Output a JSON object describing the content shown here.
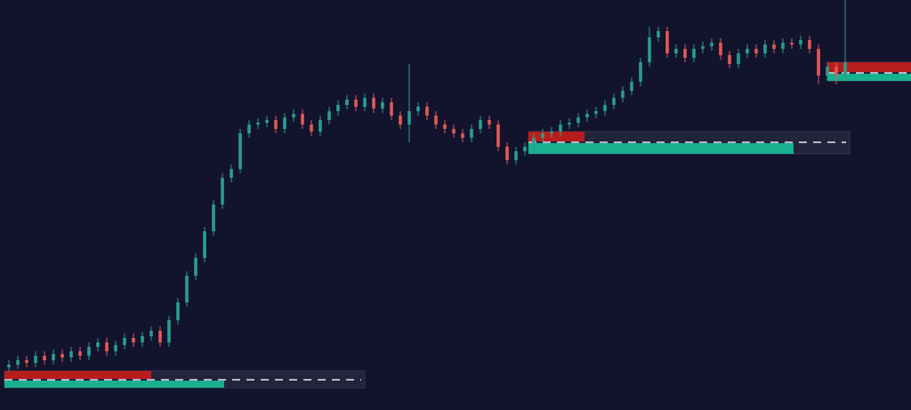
{
  "chart_data": {
    "type": "candlestick",
    "xlim": [
      -1,
      101.4
    ],
    "ylim": [
      0,
      461
    ],
    "up_color": "#2a9d8f",
    "down_color": "#e05a5a",
    "zone_sell_color": "#b81d1d",
    "zone_buy_color": "#18b08f",
    "zone_box_color": "#262840",
    "open": [
      48,
      51,
      56,
      53,
      61,
      56,
      63,
      59,
      66,
      61,
      71,
      76,
      66,
      73,
      81,
      76,
      83,
      89,
      76,
      101,
      121,
      151,
      171,
      201,
      231,
      261,
      271,
      311,
      321,
      323,
      326,
      316,
      329,
      333,
      321,
      313,
      326,
      336,
      343,
      349,
      341,
      351,
      339,
      346,
      331,
      321,
      336,
      341,
      331,
      321,
      316,
      311,
      306,
      316,
      326,
      321,
      296,
      281,
      291,
      296,
      306,
      311,
      313,
      321,
      323,
      329,
      333,
      336,
      343,
      351,
      359,
      369,
      391,
      419,
      426,
      401,
      406,
      396,
      406,
      409,
      413,
      399,
      389,
      401,
      406,
      401,
      411,
      406,
      413,
      411,
      416,
      406,
      376,
      386,
      376
    ],
    "high": [
      56,
      61,
      61,
      66,
      66,
      68,
      68,
      71,
      71,
      76,
      81,
      81,
      78,
      86,
      86,
      88,
      94,
      94,
      106,
      126,
      156,
      176,
      206,
      236,
      266,
      276,
      316,
      326,
      328,
      331,
      331,
      334,
      338,
      338,
      326,
      331,
      341,
      348,
      354,
      354,
      356,
      356,
      351,
      351,
      336,
      389,
      346,
      346,
      336,
      326,
      321,
      316,
      321,
      331,
      331,
      326,
      301,
      296,
      301,
      311,
      316,
      318,
      326,
      328,
      334,
      338,
      341,
      348,
      356,
      364,
      374,
      396,
      431,
      431,
      431,
      411,
      411,
      411,
      414,
      418,
      418,
      404,
      406,
      411,
      411,
      416,
      416,
      418,
      418,
      421,
      421,
      411,
      391,
      391,
      461
    ],
    "low": [
      43,
      46,
      48,
      48,
      51,
      51,
      54,
      54,
      56,
      56,
      66,
      61,
      61,
      68,
      71,
      71,
      78,
      71,
      71,
      96,
      116,
      146,
      166,
      196,
      226,
      256,
      266,
      306,
      316,
      318,
      311,
      311,
      324,
      316,
      308,
      308,
      321,
      331,
      338,
      336,
      336,
      334,
      334,
      326,
      316,
      301,
      331,
      326,
      316,
      311,
      306,
      301,
      301,
      311,
      316,
      291,
      276,
      276,
      286,
      291,
      301,
      306,
      308,
      316,
      318,
      324,
      328,
      331,
      338,
      346,
      354,
      364,
      386,
      414,
      396,
      396,
      391,
      391,
      401,
      404,
      394,
      384,
      384,
      396,
      396,
      396,
      401,
      401,
      406,
      406,
      401,
      366,
      371,
      366,
      371
    ],
    "close": [
      51,
      56,
      53,
      61,
      56,
      63,
      59,
      66,
      61,
      71,
      76,
      66,
      73,
      81,
      76,
      83,
      89,
      76,
      101,
      121,
      151,
      171,
      201,
      231,
      261,
      271,
      311,
      321,
      323,
      326,
      316,
      329,
      333,
      321,
      313,
      326,
      336,
      343,
      349,
      341,
      351,
      339,
      346,
      331,
      321,
      336,
      341,
      331,
      321,
      316,
      311,
      306,
      316,
      326,
      321,
      296,
      281,
      291,
      296,
      306,
      311,
      313,
      321,
      323,
      329,
      333,
      336,
      343,
      351,
      359,
      369,
      391,
      419,
      426,
      401,
      406,
      396,
      406,
      409,
      413,
      399,
      389,
      401,
      406,
      401,
      411,
      406,
      413,
      411,
      416,
      406,
      376,
      386,
      376,
      391
    ],
    "zones": [
      {
        "start": -0.5,
        "end": 40,
        "top": 44,
        "mid": 34,
        "bottom": 25,
        "sell_end": 16,
        "buy_end": 24.2
      },
      {
        "start": 58.4,
        "end": 94.5,
        "top": 313,
        "mid": 301,
        "bottom": 288,
        "sell_end": 64.7,
        "buy_end": 88.2
      },
      {
        "start": 92,
        "end": 101.4,
        "top": 391,
        "mid": 379,
        "bottom": 370,
        "sell_end": 101.4,
        "buy_end": 101.4
      }
    ]
  }
}
